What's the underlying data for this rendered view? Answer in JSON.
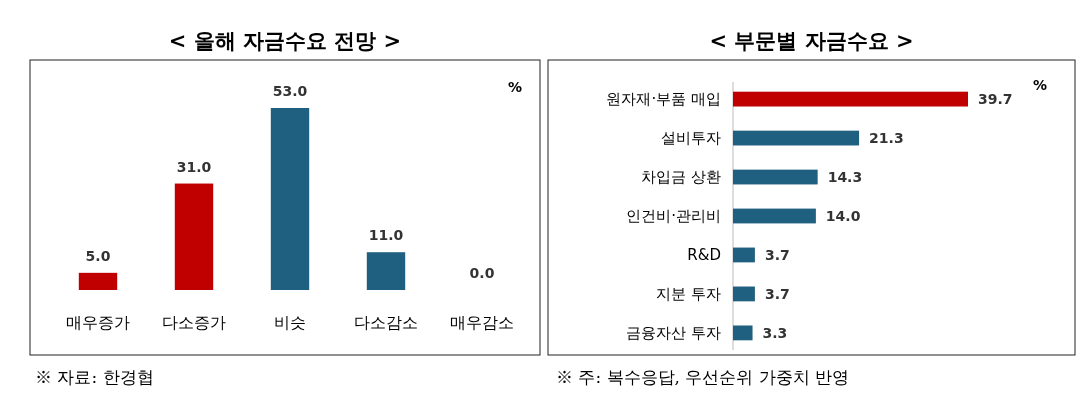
{
  "chart_data": [
    {
      "type": "bar",
      "title": "< 올해 자금수요 전망 >",
      "ylabel": "%",
      "categories": [
        "매우증가",
        "다소증가",
        "비슷",
        "다소감소",
        "매우감소"
      ],
      "values": [
        5.0,
        31.0,
        53.0,
        11.0,
        0.0
      ],
      "value_labels": [
        "5.0",
        "31.0",
        "53.0",
        "11.0",
        "0.0"
      ],
      "colors": [
        "#c00000",
        "#c00000",
        "#1f5f7f",
        "#1f5f7f",
        "#1f5f7f"
      ],
      "annotations": [
        "※ 자료: 한경협"
      ]
    },
    {
      "type": "bar",
      "orientation": "horizontal",
      "title": "< 부문별 자금수요 >",
      "xlabel": "%",
      "categories": [
        "원자재·부품 매입",
        "설비투자",
        "차입금 상환",
        "인건비·관리비",
        "R&D",
        "지분 투자",
        "금융자산 투자"
      ],
      "values": [
        39.7,
        21.3,
        14.3,
        14.0,
        3.7,
        3.7,
        3.3
      ],
      "value_labels": [
        "39.7",
        "21.3",
        "14.3",
        "14.0",
        "3.7",
        "3.7",
        "3.3"
      ],
      "colors": [
        "#c00000",
        "#1f5f7f",
        "#1f5f7f",
        "#1f5f7f",
        "#1f5f7f",
        "#1f5f7f",
        "#1f5f7f"
      ],
      "annotations": [
        "※ 주: 복수응답, 우선순위 가중치 반영"
      ]
    }
  ]
}
